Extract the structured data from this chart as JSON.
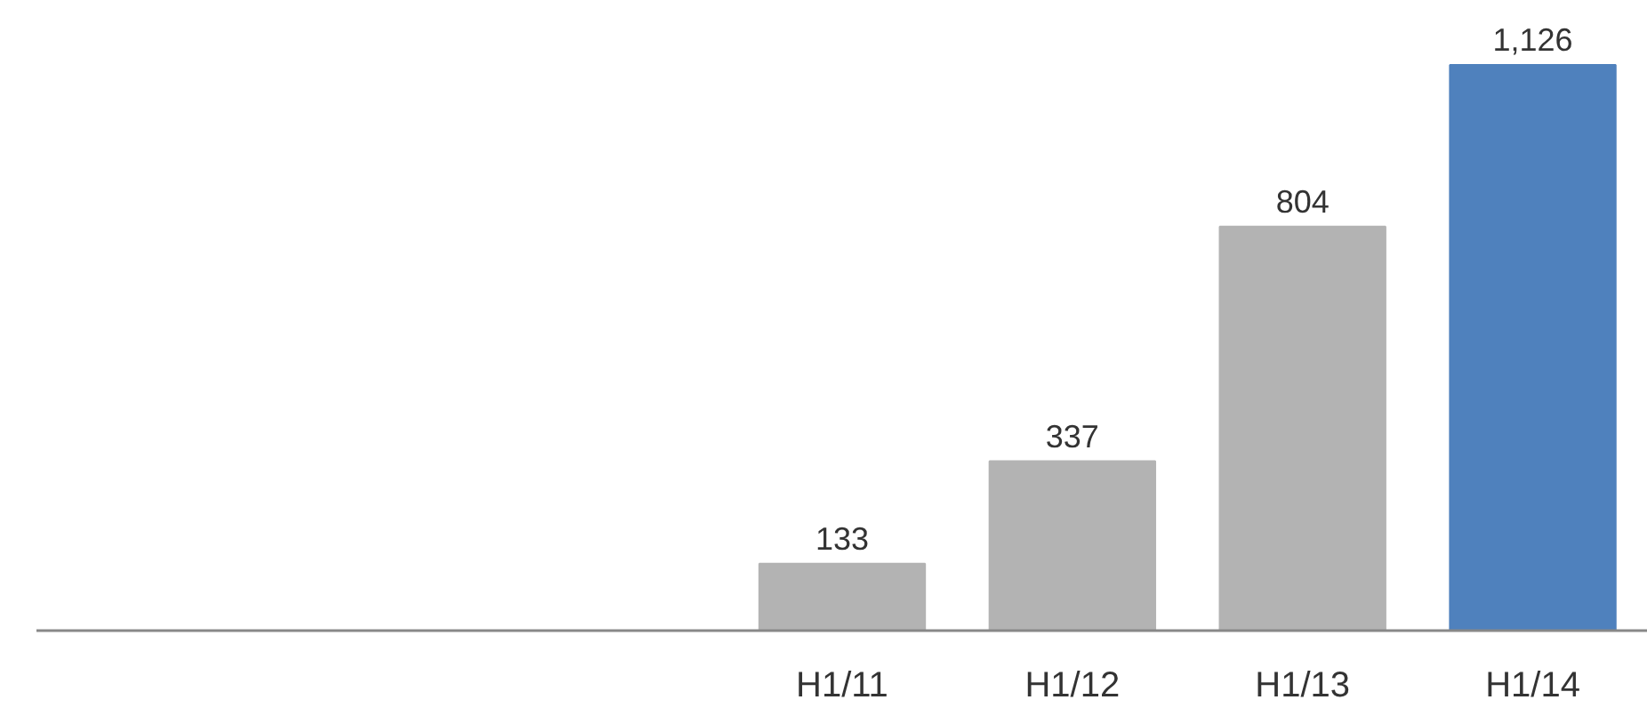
{
  "chart_data": {
    "type": "bar",
    "categories": [
      null,
      null,
      null,
      "H1/11",
      "H1/12",
      "H1/13",
      "H1/14"
    ],
    "values": [
      null,
      null,
      null,
      133,
      337,
      804,
      1126
    ],
    "colors": [
      null,
      null,
      null,
      "#b3b3b3",
      "#b3b3b3",
      "#b3b3b3",
      "#4f81bd"
    ],
    "value_labels": [
      null,
      null,
      null,
      "133",
      "337",
      "804",
      "1,126"
    ]
  }
}
